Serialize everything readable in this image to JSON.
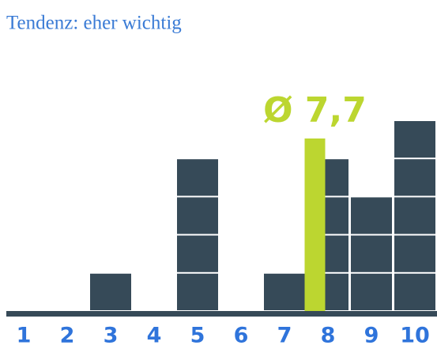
{
  "chart_data": {
    "type": "bar",
    "title": "Tendenz: eher wichtig",
    "categories": [
      "1",
      "2",
      "3",
      "4",
      "5",
      "6",
      "7",
      "8",
      "9",
      "10"
    ],
    "values": [
      0,
      0,
      1,
      0,
      4,
      0,
      1,
      4,
      3,
      5
    ],
    "color": "#364a58",
    "mean": {
      "value": 7.7,
      "label": "Ø 7,7",
      "color": "#bcd630"
    }
  }
}
